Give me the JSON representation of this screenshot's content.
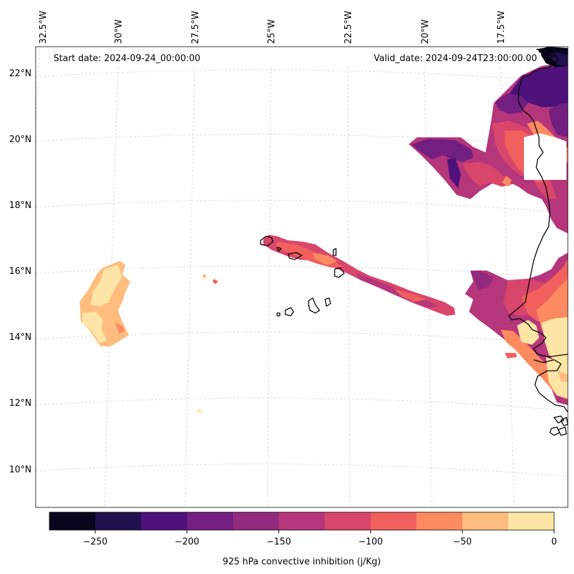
{
  "annotations": {
    "start_date": "Start date: 2024-09-24_00:00:00",
    "valid_date": "Valid_date: 2024-09-24T23:00:00.00"
  },
  "axes": {
    "lon_labels": [
      "32.5°W",
      "30°W",
      "27.5°W",
      "25°W",
      "22.5°W",
      "20°W",
      "17.5°W"
    ],
    "lat_labels": [
      "22°N",
      "20°N",
      "18°N",
      "16°N",
      "14°N",
      "12°N",
      "10°N"
    ]
  },
  "colorbar": {
    "label": "925 hPa convective inhibition (j/Kg)",
    "ticks": [
      "−250",
      "−200",
      "−150",
      "−100",
      "−50",
      "0"
    ],
    "colors": [
      "#07061c",
      "#21114e",
      "#4f127b",
      "#721f81",
      "#922a7e",
      "#b5367a",
      "#d9466b",
      "#f1605d",
      "#fe8a61",
      "#febc7e",
      "#fde6a5"
    ]
  },
  "chart_data": {
    "type": "contourf-map",
    "variable": "925 hPa convective inhibition",
    "units": "j/Kg",
    "levels": [
      -275,
      -250,
      -225,
      -200,
      -175,
      -150,
      -125,
      -100,
      -75,
      -50,
      -25,
      0
    ],
    "lon_range": [
      -33,
      -16
    ],
    "lat_range": [
      9,
      23
    ]
  }
}
